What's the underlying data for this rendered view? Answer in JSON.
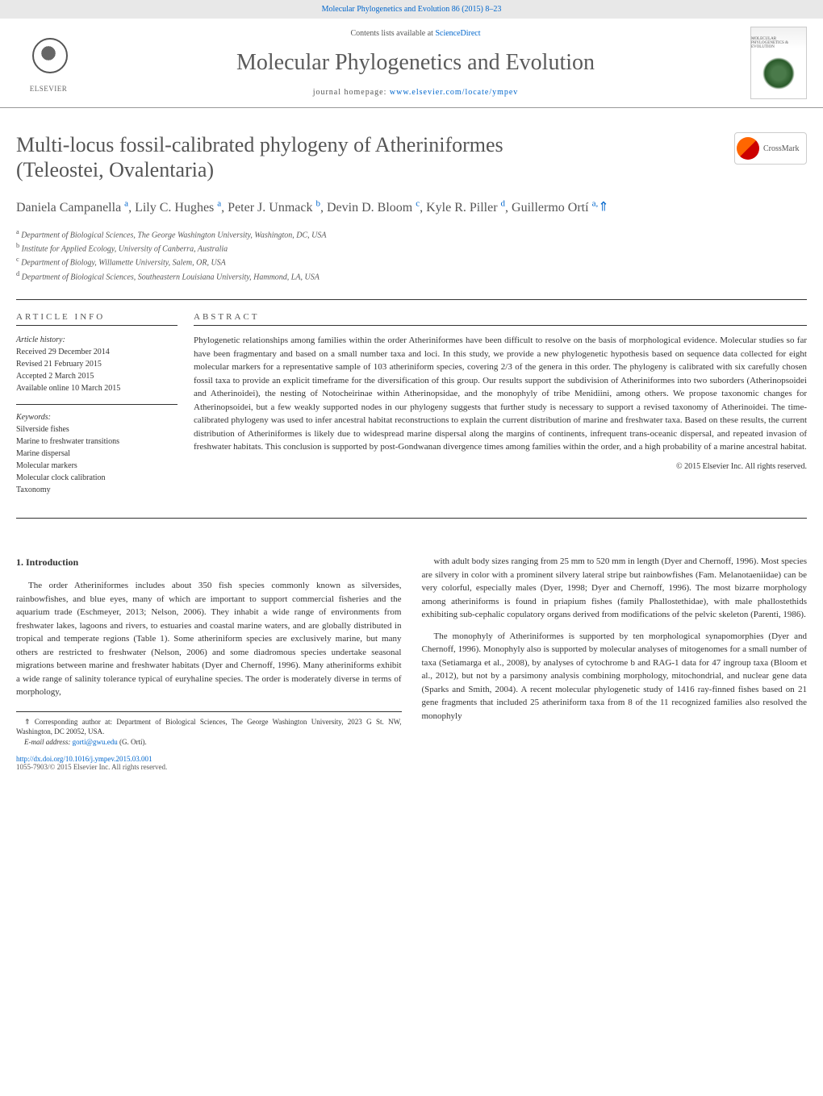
{
  "header_link": "Molecular Phylogenetics and Evolution 86 (2015) 8–23",
  "contents_text": "Contents lists available at ",
  "contents_link": "ScienceDirect",
  "journal_name": "Molecular Phylogenetics and Evolution",
  "homepage_text": "journal homepage: ",
  "homepage_link": "www.elsevier.com/locate/ympev",
  "publisher": "ELSEVIER",
  "cover_text": "MOLECULAR PHYLOGENETICS & EVOLUTION",
  "crossmark": "CrossMark",
  "title_line1": "Multi-locus fossil-calibrated phylogeny of Atheriniformes",
  "title_line2": "(Teleostei, Ovalentaria)",
  "authors_html": "Daniela Campanella <sup>a</sup>, Lily C. Hughes <sup>a</sup>, Peter J. Unmack <sup>b</sup>, Devin D. Bloom <sup>c</sup>, Kyle R. Piller <sup>d</sup>, Guillermo Ortí <sup>a,</sup>",
  "corresponding_marker": "⇑",
  "affiliations": [
    "a Department of Biological Sciences, The George Washington University, Washington, DC, USA",
    "b Institute for Applied Ecology, University of Canberra, Australia",
    "c Department of Biology, Willamette University, Salem, OR, USA",
    "d Department of Biological Sciences, Southeastern Louisiana University, Hammond, LA, USA"
  ],
  "article_info_heading": "ARTICLE INFO",
  "history_label": "Article history:",
  "history": [
    "Received 29 December 2014",
    "Revised 21 February 2015",
    "Accepted 2 March 2015",
    "Available online 10 March 2015"
  ],
  "keywords_label": "Keywords:",
  "keywords": [
    "Silverside fishes",
    "Marine to freshwater transitions",
    "Marine dispersal",
    "Molecular markers",
    "Molecular clock calibration",
    "Taxonomy"
  ],
  "abstract_heading": "ABSTRACT",
  "abstract_text": "Phylogenetic relationships among families within the order Atheriniformes have been difficult to resolve on the basis of morphological evidence. Molecular studies so far have been fragmentary and based on a small number taxa and loci. In this study, we provide a new phylogenetic hypothesis based on sequence data collected for eight molecular markers for a representative sample of 103 atheriniform species, covering 2/3 of the genera in this order. The phylogeny is calibrated with six carefully chosen fossil taxa to provide an explicit timeframe for the diversification of this group. Our results support the subdivision of Atheriniformes into two suborders (Atherinopsoidei and Atherinoidei), the nesting of Notocheirinae within Atherinopsidae, and the monophyly of tribe Menidiini, among others. We propose taxonomic changes for Atherinopsoidei, but a few weakly supported nodes in our phylogeny suggests that further study is necessary to support a revised taxonomy of Atherinoidei. The time-calibrated phylogeny was used to infer ancestral habitat reconstructions to explain the current distribution of marine and freshwater taxa. Based on these results, the current distribution of Atheriniformes is likely due to widespread marine dispersal along the margins of continents, infrequent trans-oceanic dispersal, and repeated invasion of freshwater habitats. This conclusion is supported by post-Gondwanan divergence times among families within the order, and a high probability of a marine ancestral habitat.",
  "copyright": "© 2015 Elsevier Inc. All rights reserved.",
  "intro_heading": "1. Introduction",
  "col1_p1": "The order Atheriniformes includes about 350 fish species commonly known as silversides, rainbowfishes, and blue eyes, many of which are important to support commercial fisheries and the aquarium trade (Eschmeyer, 2013; Nelson, 2006). They inhabit a wide range of environments from freshwater lakes, lagoons and rivers, to estuaries and coastal marine waters, and are globally distributed in tropical and temperate regions (Table 1). Some atheriniform species are exclusively marine, but many others are restricted to freshwater (Nelson, 2006) and some diadromous species undertake seasonal migrations between marine and freshwater habitats (Dyer and Chernoff, 1996). Many atheriniforms exhibit a wide range of salinity tolerance typical of euryhaline species. The order is moderately diverse in terms of morphology,",
  "col2_p1": "with adult body sizes ranging from 25 mm to 520 mm in length (Dyer and Chernoff, 1996). Most species are silvery in color with a prominent silvery lateral stripe but rainbowfishes (Fam. Melanotaeniidae) can be very colorful, especially males (Dyer, 1998; Dyer and Chernoff, 1996). The most bizarre morphology among atheriniforms is found in priapium fishes (family Phallostethidae), with male phallostethids exhibiting sub-cephalic copulatory organs derived from modifications of the pelvic skeleton (Parenti, 1986).",
  "col2_p2": "The monophyly of Atheriniformes is supported by ten morphological synapomorphies (Dyer and Chernoff, 1996). Monophyly also is supported by molecular analyses of mitogenomes for a small number of taxa (Setiamarga et al., 2008), by analyses of cytochrome b and RAG-1 data for 47 ingroup taxa (Bloom et al., 2012), but not by a parsimony analysis combining morphology, mitochondrial, and nuclear gene data (Sparks and Smith, 2004). A recent molecular phylogenetic study of 1416 ray-finned fishes based on 21 gene fragments that included 25 atheriniform taxa from 8 of the 11 recognized families also resolved the monophyly",
  "footnote_corr": "⇑ Corresponding author at: Department of Biological Sciences, The George Washington University, 2023 G St. NW, Washington, DC 20052, USA.",
  "footnote_email_label": "E-mail address: ",
  "footnote_email": "gorti@gwu.edu",
  "footnote_email_name": " (G. Ortí).",
  "doi": "http://dx.doi.org/10.1016/j.ympev.2015.03.001",
  "issn_line": "1055-7903/© 2015 Elsevier Inc. All rights reserved.",
  "colors": {
    "link": "#0066cc",
    "text": "#333333",
    "heading": "#555555",
    "border": "#333333"
  }
}
